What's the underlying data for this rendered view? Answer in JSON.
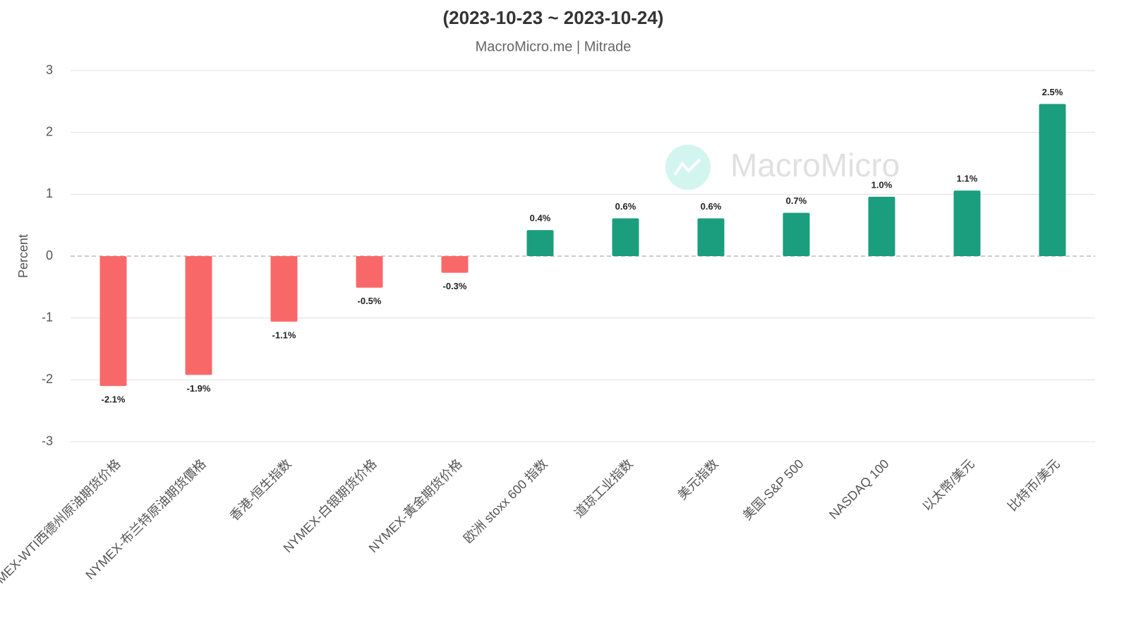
{
  "chart_data": {
    "type": "bar",
    "title": "(2023-10-23 ~ 2023-10-24)",
    "subtitle": "MacroMicro.me | Mitrade",
    "watermark": "MacroMicro",
    "y_label": "Percent",
    "categories": [
      "NYMEX-WTI西德州原油期货价格",
      "NYMEX-布兰特原油期货價格",
      "香港-恒生指数",
      "NYMEX-白银期货价格",
      "NYMEX-黃金期货价格",
      "欧洲 stoxx 600 指数",
      "道琼工业指数",
      "美元指数",
      "美国-S&P 500",
      "NASDAQ 100",
      "以太幣/美元",
      "比特币/美元"
    ],
    "values": [
      -2.1,
      -1.92,
      -1.06,
      -0.51,
      -0.27,
      0.42,
      0.61,
      0.61,
      0.7,
      0.96,
      1.06,
      2.46
    ],
    "value_labels": [
      "-2.1%",
      "-1.9%",
      "-1.1%",
      "-0.5%",
      "-0.3%",
      "0.4%",
      "0.6%",
      "0.6%",
      "0.7%",
      "1.0%",
      "1.1%",
      "2.5%"
    ],
    "positive_color": "#1a9e7e",
    "negative_color": "#f96868",
    "ylim": [
      -3,
      3
    ],
    "yticks": [
      -3,
      -2,
      -1,
      0,
      1,
      2,
      3
    ],
    "grid": true
  }
}
